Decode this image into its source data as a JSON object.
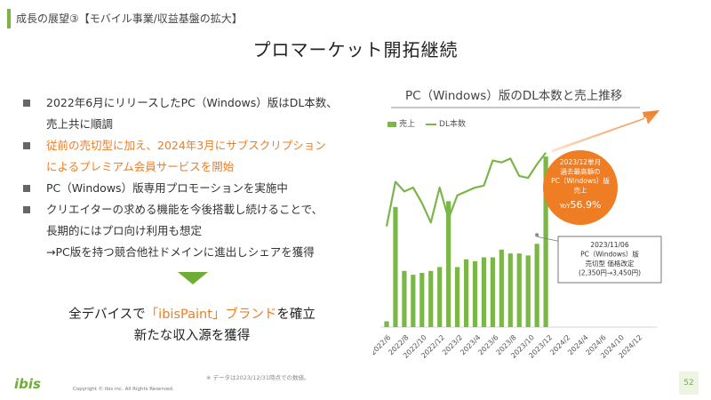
{
  "header": {
    "title": "成長の展望③【モバイル事業/収益基盤の拡大】"
  },
  "slide": {
    "title": "プロマーケット開拓継続"
  },
  "bullets": [
    {
      "lines": [
        "2022年6月にリリースしたPC（Windows）版はDL本数、",
        "売上共に順調"
      ]
    },
    {
      "lines": [
        "従前の売切型に加え、2024年3月にサブスクリプション",
        "によるプレミアム会員サービスを開始"
      ]
    },
    {
      "lines": [
        "PC（Windows）版専用プロモーションを実施中"
      ]
    },
    {
      "lines": [
        "クリエイターの求める機能を今後搭載し続けることで、",
        "長期的にはプロ向け利用も想定",
        "→PC版を持つ競合他社ドメインに進出しシェアを獲得"
      ]
    }
  ],
  "conclusion": {
    "l1_pre": "全デバイスで",
    "l1_hl": "「ibisPaint」ブランド",
    "l1_post": "を確立",
    "l2": "新たな収入源を獲得"
  },
  "chart_meta": {
    "title": "PC（Windows）版のDL本数と売上推移",
    "legend_bar": "売上",
    "legend_line": "DL本数",
    "callout_record": [
      "2023/12単月",
      "過去最高額の",
      "PC（Windows）版",
      "売上"
    ],
    "callout_yoy_label": "YoY",
    "callout_yoy_value": "56.9%",
    "callout_price": [
      "2023/11/06",
      "PC（Windows）版",
      "売切型 価格改定",
      "(2,350円→3,450円)"
    ]
  },
  "chart_data": {
    "type": "bar",
    "title": "PC（Windows）版のDL本数と売上推移",
    "x": [
      "2022/6",
      "2022/7",
      "2022/8",
      "2022/9",
      "2022/10",
      "2022/11",
      "2022/12",
      "2023/1",
      "2023/2",
      "2023/3",
      "2023/4",
      "2023/5",
      "2023/6",
      "2023/7",
      "2023/8",
      "2023/9",
      "2023/10",
      "2023/11",
      "2023/12"
    ],
    "tick_labels": [
      "2022/6",
      "2022/8",
      "2022/10",
      "2022/12",
      "2023/2",
      "2023/4",
      "2023/6",
      "2023/8",
      "2023/10",
      "2023/12",
      "2024/2",
      "2024/4",
      "2024/6",
      "2024/10",
      "2024/12"
    ],
    "series": [
      {
        "name": "売上",
        "kind": "bar",
        "values": [
          3,
          62,
          29,
          27,
          28,
          29,
          31,
          65,
          31,
          35,
          34,
          36,
          36,
          40,
          38,
          38,
          37,
          43,
          88
        ]
      },
      {
        "name": "DL本数",
        "kind": "line",
        "values": [
          52,
          75,
          70,
          72,
          64,
          54,
          72,
          56,
          68,
          70,
          72,
          73,
          86,
          85,
          87,
          78,
          77,
          84,
          90
        ]
      }
    ],
    "ylim": [
      0,
      100
    ],
    "xlabel": "",
    "ylabel": ""
  },
  "footer": {
    "note": "※ データは2023/12/31時点での数値。",
    "logo": "ibis",
    "copyright": "Copyright © ibis inc. All Rights Reserved.",
    "page": "52"
  },
  "colors": {
    "accent_green": "#7ab648",
    "accent_orange": "#ee7d24"
  }
}
